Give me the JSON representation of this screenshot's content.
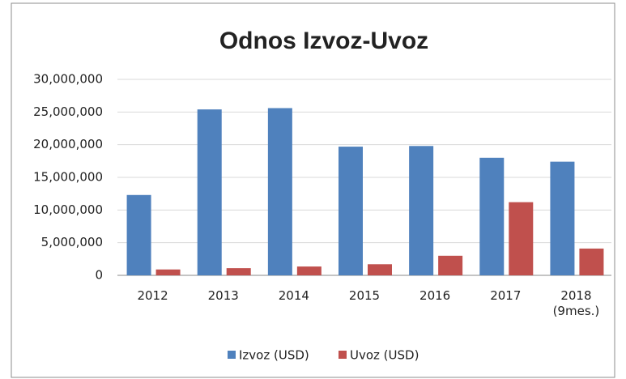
{
  "chart_data": {
    "type": "bar",
    "title": "Odnos Izvoz-Uvoz",
    "categories": [
      "2012",
      "2013",
      "2014",
      "2015",
      "2016",
      "2017",
      "2018 (9mes.)"
    ],
    "series": [
      {
        "name": "Izvoz (USD)",
        "color": "#4f81bd",
        "values": [
          12300000,
          25400000,
          25600000,
          19700000,
          19800000,
          18000000,
          17400000
        ]
      },
      {
        "name": "Uvoz (USD)",
        "color": "#c0504d",
        "values": [
          900000,
          1100000,
          1350000,
          1700000,
          3000000,
          11200000,
          4100000
        ]
      }
    ],
    "ylim": [
      0,
      30000000
    ],
    "yticks": [
      0,
      {
        "value": 5000000,
        "label": "5,000,000"
      },
      {
        "value": 10000000,
        "label": "10,000,000"
      },
      {
        "value": 15000000,
        "label": "15,000,000"
      },
      {
        "value": 20000000,
        "label": "20,000,000"
      },
      {
        "value": 25000000,
        "label": "25,000,000"
      },
      {
        "value": 30000000,
        "label": "30,000,000"
      }
    ],
    "grid": true,
    "legend": "bottom"
  }
}
